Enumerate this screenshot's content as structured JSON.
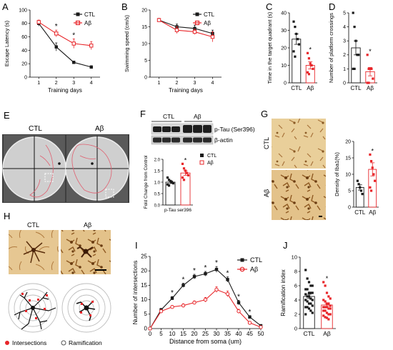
{
  "panel_letters": [
    "A",
    "B",
    "C",
    "D",
    "E",
    "F",
    "G",
    "H",
    "I",
    "J"
  ],
  "colors": {
    "ctl": "#1a1a1a",
    "ab": "#e8262a",
    "micro": "#c9a062",
    "microDark": "#7a4a1a"
  },
  "chart_data": [
    {
      "panel": "A",
      "type": "line",
      "ylabel": "Escape Latency (s)",
      "xlabel": "Training days",
      "x": [
        1,
        2,
        3,
        4
      ],
      "ylim": [
        0,
        100
      ],
      "yticks": [
        0,
        20,
        40,
        60,
        80,
        100
      ],
      "series": [
        {
          "name": "CTL",
          "values": [
            80,
            45,
            22,
            15
          ],
          "err": [
            4,
            6,
            2,
            2
          ]
        },
        {
          "name": "Aβ",
          "values": [
            82,
            65,
            50,
            47
          ],
          "err": [
            3,
            5,
            7,
            6
          ]
        }
      ],
      "stars": [
        {
          "x": 2,
          "label": "*"
        },
        {
          "x": 3,
          "label": "*"
        }
      ]
    },
    {
      "panel": "B",
      "type": "line",
      "ylabel": "Swimming speed (cm/s)",
      "xlabel": "Training days",
      "x": [
        1,
        2,
        3,
        4
      ],
      "ylim": [
        0,
        20
      ],
      "yticks": [
        0,
        5,
        10,
        15,
        20
      ],
      "series": [
        {
          "name": "CTL",
          "values": [
            17,
            15,
            14.5,
            13
          ],
          "err": [
            0.5,
            0.8,
            1,
            1
          ]
        },
        {
          "name": "Aβ",
          "values": [
            17,
            14,
            13.5,
            12
          ],
          "err": [
            0.5,
            1,
            0.8,
            1.5
          ]
        }
      ]
    },
    {
      "panel": "C",
      "type": "bar",
      "ylabel": "Time in the target quadrant (s)",
      "categories": [
        "CTL",
        "Aβ"
      ],
      "values": [
        25,
        10
      ],
      "err": [
        3,
        2
      ],
      "ylim": [
        0,
        40
      ],
      "yticks": [
        0,
        10,
        20,
        30,
        40
      ],
      "points": [
        [
          35,
          32,
          28,
          25,
          22,
          18,
          15
        ],
        [
          17,
          14,
          11,
          10,
          8,
          6,
          5
        ]
      ],
      "stars": [
        "",
        "*"
      ]
    },
    {
      "panel": "D",
      "type": "bar",
      "ylabel": "Number of platform crossings",
      "categories": [
        "CTL",
        "Aβ"
      ],
      "values": [
        2.5,
        0.8
      ],
      "err": [
        0.5,
        0.3
      ],
      "ylim": [
        0,
        5
      ],
      "yticks": [
        0,
        1,
        2,
        3,
        4,
        5
      ],
      "points": [
        [
          5,
          4,
          3,
          2,
          2,
          1,
          1
        ],
        [
          2,
          1,
          1,
          1,
          0.3,
          0,
          0
        ]
      ],
      "stars": [
        "",
        "*"
      ]
    },
    {
      "panel": "F",
      "type": "bar",
      "ylabel": "Fold Change from Control",
      "xlabel": "p-Tau ser396",
      "categories": [
        "CTL",
        "Aβ"
      ],
      "values": [
        1.0,
        1.4
      ],
      "err": [
        0.06,
        0.1
      ],
      "ylim": [
        0,
        2.0
      ],
      "yticks": [
        0,
        0.5,
        1.0,
        1.5,
        2.0
      ],
      "points": [
        [
          1.2,
          1.1,
          1.05,
          1.0,
          0.95,
          0.9,
          0.85
        ],
        [
          1.8,
          1.6,
          1.5,
          1.4,
          1.3,
          1.2,
          1.1
        ]
      ],
      "stars": [
        "",
        "*"
      ]
    },
    {
      "panel": "G",
      "type": "bar",
      "ylabel": "Density of Iba1(%)",
      "categories": [
        "CTL",
        "Aβ"
      ],
      "values": [
        6,
        11.5
      ],
      "err": [
        0.8,
        2
      ],
      "ylim": [
        0,
        20
      ],
      "yticks": [
        0,
        5,
        10,
        15,
        20
      ],
      "points": [
        [
          8,
          7,
          6,
          5,
          4
        ],
        [
          16,
          14,
          12,
          10,
          8,
          6,
          5
        ]
      ],
      "stars": [
        "",
        "*"
      ]
    },
    {
      "panel": "I",
      "type": "line",
      "ylabel": "Number of intersections",
      "xlabel": "Distance from soma (um)",
      "x": [
        0,
        5,
        10,
        15,
        20,
        25,
        30,
        35,
        40,
        45,
        50
      ],
      "ylim": [
        0,
        25
      ],
      "yticks": [
        0,
        5,
        10,
        15,
        20,
        25
      ],
      "series": [
        {
          "name": "CTL",
          "values": [
            0,
            6.5,
            10.5,
            15,
            18,
            19,
            20.5,
            17,
            9,
            4,
            1
          ],
          "err": [
            0,
            0.5,
            0.6,
            0.7,
            0.8,
            0.8,
            1,
            0.9,
            0.8,
            0.5,
            0.2
          ]
        },
        {
          "name": "Aβ",
          "values": [
            0,
            6,
            7.5,
            8,
            9,
            10,
            13.5,
            12,
            6,
            2,
            0.5
          ],
          "err": [
            0,
            0.5,
            0.5,
            0.6,
            0.6,
            0.8,
            1,
            1,
            0.7,
            0.4,
            0.2
          ]
        }
      ],
      "stars": [
        {
          "x": 10,
          "label": "*"
        },
        {
          "x": 15,
          "label": "*"
        },
        {
          "x": 20,
          "label": "*"
        },
        {
          "x": 25,
          "label": "*"
        },
        {
          "x": 30,
          "label": "*"
        },
        {
          "x": 35,
          "label": "*"
        },
        {
          "x": 40,
          "label": "*"
        },
        {
          "x": 45,
          "label": "*"
        }
      ]
    },
    {
      "panel": "J",
      "type": "bar",
      "ylabel": "Ramification index",
      "categories": [
        "CTL",
        "Aβ"
      ],
      "values": [
        4.5,
        3.3
      ],
      "err": [
        0.3,
        0.2
      ],
      "ylim": [
        0,
        10
      ],
      "yticks": [
        0,
        2,
        4,
        6,
        8,
        10
      ],
      "points": [
        [
          8.2,
          7,
          6.5,
          6,
          6,
          5.5,
          5.5,
          5,
          5,
          5,
          4.8,
          4.5,
          4.5,
          4.2,
          4,
          4,
          3.8,
          3.5,
          3.5,
          3.2,
          3,
          3,
          2.8,
          2.5,
          2.2,
          2
        ],
        [
          6.5,
          6,
          5,
          4.5,
          4.2,
          4,
          3.8,
          3.5,
          3.5,
          3.2,
          3,
          3,
          3,
          2.8,
          2.8,
          2.5,
          2.5,
          2.2,
          2,
          2,
          1.8,
          1.6,
          1.5,
          1.3
        ]
      ],
      "stars": [
        "",
        "*"
      ]
    }
  ],
  "panelE": {
    "labels": [
      "CTL",
      "Aβ"
    ]
  },
  "panelF": {
    "header": [
      "CTL",
      "Aβ"
    ],
    "blot_labels": [
      "p-Tau (Ser396)",
      "β-actin"
    ],
    "legend": [
      "CTL",
      "Aβ"
    ]
  },
  "panelG": {
    "row_labels": [
      "CTL",
      "Aβ"
    ]
  },
  "panelH": {
    "col_labels": [
      "CTL",
      "Aβ"
    ],
    "legend": [
      "Intersections",
      "Ramification"
    ]
  },
  "legendAB": [
    "CTL",
    "Aβ"
  ],
  "legendI": [
    "CTL",
    "Aβ"
  ]
}
